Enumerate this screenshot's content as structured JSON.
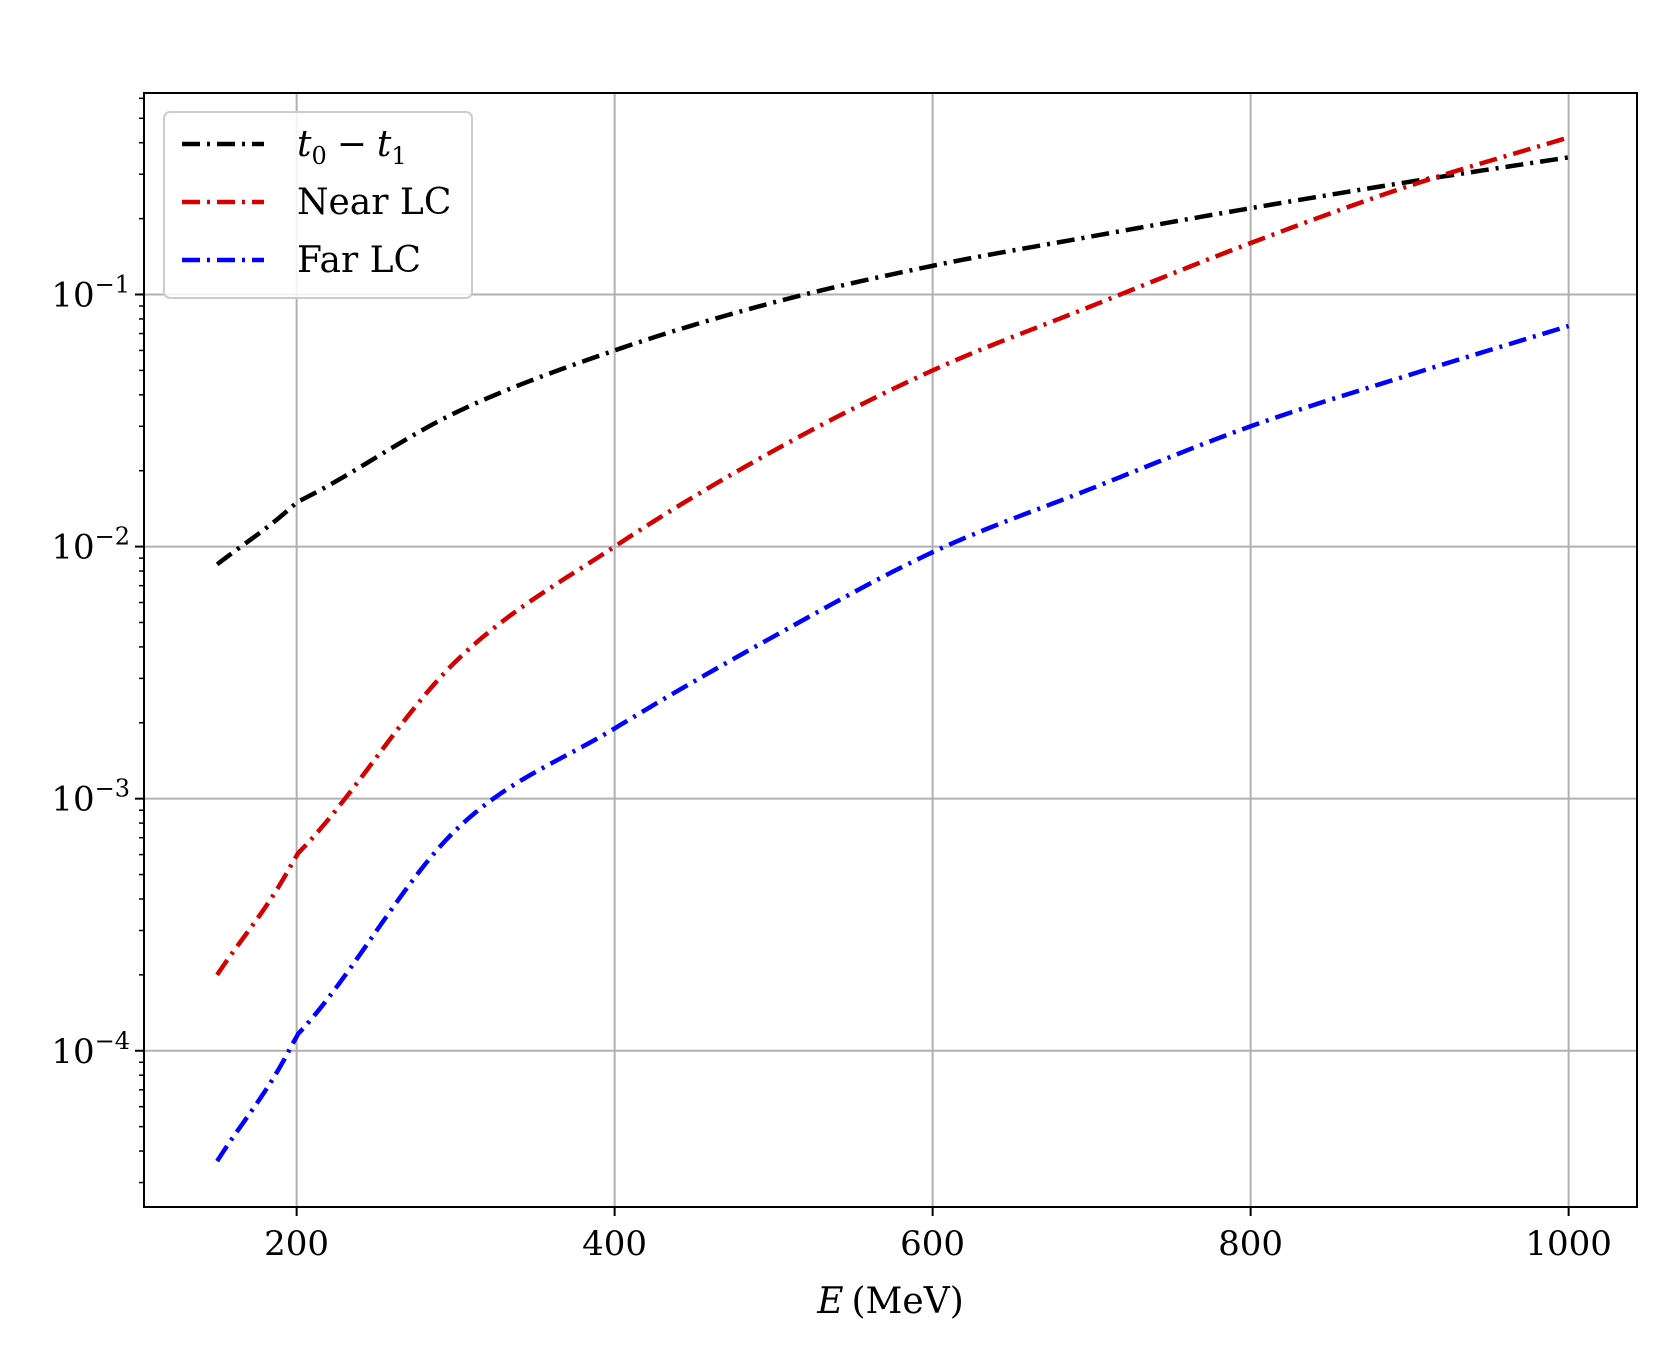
{
  "chart_data": {
    "type": "line",
    "title": "",
    "xlabel_var": "E",
    "xlabel_unit": "(MeV)",
    "ylabel": "",
    "xlim": [
      104,
      1043
    ],
    "ylim": [
      2.4e-05,
      0.63
    ],
    "yscale": "log",
    "grid": true,
    "legend_position": "top-left",
    "x_ticks": [
      200,
      400,
      600,
      800,
      1000
    ],
    "y_ticks": [
      {
        "value": 0.1,
        "base": "10",
        "exp": "−1"
      },
      {
        "value": 0.01,
        "base": "10",
        "exp": "−2"
      },
      {
        "value": 0.001,
        "base": "10",
        "exp": "−3"
      },
      {
        "value": 0.0001,
        "base": "10",
        "exp": "−4"
      }
    ],
    "x": [
      150,
      200,
      300,
      400,
      500,
      600,
      700,
      800,
      900,
      1000
    ],
    "series": [
      {
        "name": "t0 − t1",
        "legend_main": "t",
        "legend_sub1": "0",
        "legend_op": "−",
        "legend_var2": "t",
        "legend_sub2": "1",
        "color": "#000000",
        "values": [
          0.0085,
          0.015,
          0.034,
          0.06,
          0.093,
          0.13,
          0.17,
          0.22,
          0.28,
          0.35
        ]
      },
      {
        "name": "Near LC",
        "color": "#d40000",
        "values": [
          0.0002,
          0.0006,
          0.0035,
          0.01,
          0.024,
          0.05,
          0.09,
          0.16,
          0.27,
          0.42
        ]
      },
      {
        "name": "Far LC",
        "color": "#0000ff",
        "values": [
          3.65e-05,
          0.000115,
          0.00075,
          0.0019,
          0.0044,
          0.0095,
          0.017,
          0.03,
          0.048,
          0.075
        ]
      }
    ]
  }
}
